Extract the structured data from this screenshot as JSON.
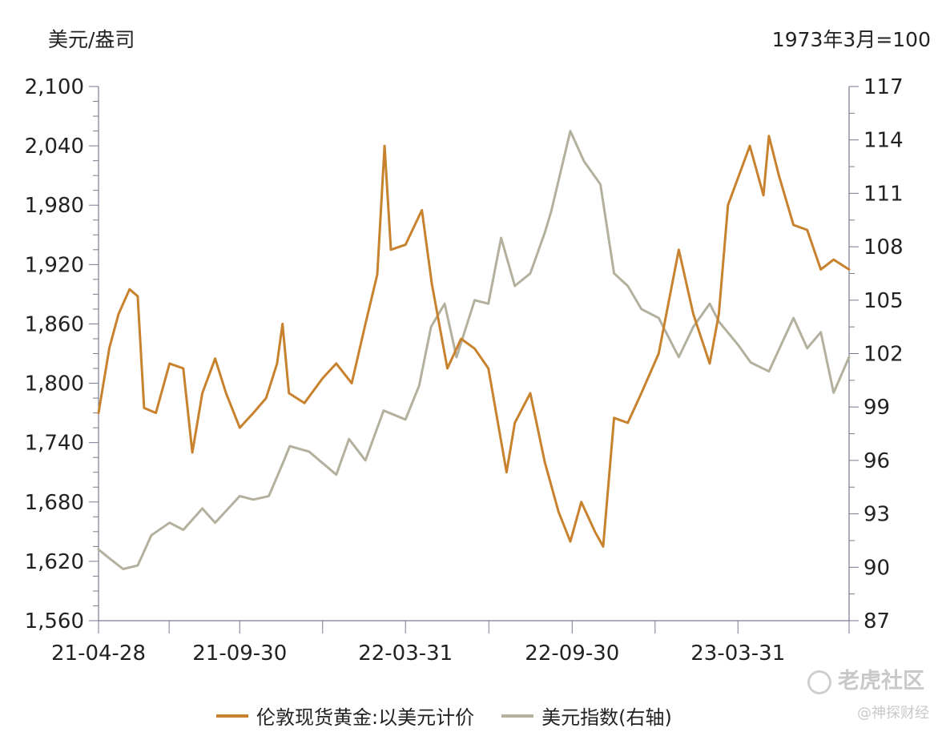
{
  "chart_data": {
    "type": "line",
    "y_left": {
      "label": "美元/盎司",
      "min": 1560,
      "max": 2100,
      "ticks": [
        "2,100",
        "2,040",
        "1,980",
        "1,920",
        "1,860",
        "1,800",
        "1,740",
        "1,680",
        "1,620",
        "1,560"
      ],
      "tick_values": [
        2100,
        2040,
        1980,
        1920,
        1860,
        1800,
        1740,
        1680,
        1620,
        1560
      ]
    },
    "y_right": {
      "label": "1973年3月=100",
      "min": 87,
      "max": 117,
      "ticks": [
        "117",
        "114",
        "111",
        "108",
        "105",
        "102",
        "99",
        "96",
        "93",
        "90",
        "87"
      ],
      "tick_values": [
        117,
        114,
        111,
        108,
        105,
        102,
        99,
        96,
        93,
        90,
        87
      ]
    },
    "x_axis": {
      "start": "2021-04-28",
      "end": "2023-07-31",
      "ticks": [
        "21-04-28",
        "21-09-30",
        "22-03-31",
        "22-09-30",
        "23-03-31"
      ],
      "tick_dates": [
        "2021-04-28",
        "2021-09-30",
        "2022-03-31",
        "2022-09-30",
        "2023-03-31"
      ]
    },
    "series": [
      {
        "name": "伦敦现货黄金:以美元计价",
        "axis": "left",
        "color": "#c8822e",
        "points": [
          [
            "2021-04-28",
            1770
          ],
          [
            "2021-05-10",
            1836
          ],
          [
            "2021-05-20",
            1870
          ],
          [
            "2021-06-01",
            1895
          ],
          [
            "2021-06-10",
            1888
          ],
          [
            "2021-06-17",
            1775
          ],
          [
            "2021-06-30",
            1770
          ],
          [
            "2021-07-15",
            1820
          ],
          [
            "2021-07-30",
            1815
          ],
          [
            "2021-08-09",
            1730
          ],
          [
            "2021-08-20",
            1790
          ],
          [
            "2021-09-03",
            1825
          ],
          [
            "2021-09-15",
            1790
          ],
          [
            "2021-09-30",
            1755
          ],
          [
            "2021-10-15",
            1770
          ],
          [
            "2021-10-29",
            1785
          ],
          [
            "2021-11-10",
            1820
          ],
          [
            "2021-11-16",
            1860
          ],
          [
            "2021-11-23",
            1790
          ],
          [
            "2021-12-10",
            1780
          ],
          [
            "2021-12-30",
            1805
          ],
          [
            "2022-01-14",
            1820
          ],
          [
            "2022-01-31",
            1800
          ],
          [
            "2022-02-15",
            1860
          ],
          [
            "2022-02-28",
            1910
          ],
          [
            "2022-03-08",
            2040
          ],
          [
            "2022-03-15",
            1935
          ],
          [
            "2022-03-31",
            1940
          ],
          [
            "2022-04-18",
            1975
          ],
          [
            "2022-04-29",
            1900
          ],
          [
            "2022-05-16",
            1815
          ],
          [
            "2022-05-31",
            1845
          ],
          [
            "2022-06-15",
            1835
          ],
          [
            "2022-06-30",
            1815
          ],
          [
            "2022-07-20",
            1710
          ],
          [
            "2022-07-29",
            1760
          ],
          [
            "2022-08-15",
            1790
          ],
          [
            "2022-08-31",
            1720
          ],
          [
            "2022-09-15",
            1670
          ],
          [
            "2022-09-28",
            1640
          ],
          [
            "2022-10-10",
            1680
          ],
          [
            "2022-10-25",
            1650
          ],
          [
            "2022-11-03",
            1635
          ],
          [
            "2022-11-15",
            1765
          ],
          [
            "2022-11-30",
            1760
          ],
          [
            "2022-12-15",
            1790
          ],
          [
            "2023-01-03",
            1830
          ],
          [
            "2023-01-25",
            1935
          ],
          [
            "2023-02-10",
            1870
          ],
          [
            "2023-02-28",
            1820
          ],
          [
            "2023-03-10",
            1870
          ],
          [
            "2023-03-20",
            1980
          ],
          [
            "2023-04-13",
            2040
          ],
          [
            "2023-04-28",
            1990
          ],
          [
            "2023-05-04",
            2050
          ],
          [
            "2023-05-15",
            2010
          ],
          [
            "2023-05-31",
            1960
          ],
          [
            "2023-06-15",
            1955
          ],
          [
            "2023-06-30",
            1915
          ],
          [
            "2023-07-14",
            1925
          ],
          [
            "2023-07-31",
            1915
          ]
        ]
      },
      {
        "name": "美元指数(右轴)",
        "axis": "right",
        "color": "#b3b09d",
        "points": [
          [
            "2021-04-28",
            91.0
          ],
          [
            "2021-05-10",
            90.5
          ],
          [
            "2021-05-25",
            89.9
          ],
          [
            "2021-06-10",
            90.1
          ],
          [
            "2021-06-25",
            91.8
          ],
          [
            "2021-07-15",
            92.5
          ],
          [
            "2021-07-30",
            92.1
          ],
          [
            "2021-08-20",
            93.3
          ],
          [
            "2021-09-03",
            92.5
          ],
          [
            "2021-09-30",
            94.0
          ],
          [
            "2021-10-15",
            93.8
          ],
          [
            "2021-11-01",
            94.0
          ],
          [
            "2021-11-16",
            95.8
          ],
          [
            "2021-11-24",
            96.8
          ],
          [
            "2021-12-15",
            96.5
          ],
          [
            "2022-01-14",
            95.2
          ],
          [
            "2022-01-28",
            97.2
          ],
          [
            "2022-02-15",
            96.0
          ],
          [
            "2022-03-07",
            98.8
          ],
          [
            "2022-03-31",
            98.3
          ],
          [
            "2022-04-15",
            100.2
          ],
          [
            "2022-04-28",
            103.5
          ],
          [
            "2022-05-13",
            104.8
          ],
          [
            "2022-05-26",
            101.8
          ],
          [
            "2022-06-15",
            105.0
          ],
          [
            "2022-06-30",
            104.8
          ],
          [
            "2022-07-14",
            108.5
          ],
          [
            "2022-07-29",
            105.8
          ],
          [
            "2022-08-15",
            106.5
          ],
          [
            "2022-08-31",
            108.8
          ],
          [
            "2022-09-07",
            110.0
          ],
          [
            "2022-09-28",
            114.5
          ],
          [
            "2022-10-13",
            112.8
          ],
          [
            "2022-10-31",
            111.5
          ],
          [
            "2022-11-15",
            106.5
          ],
          [
            "2022-11-30",
            105.8
          ],
          [
            "2022-12-15",
            104.5
          ],
          [
            "2023-01-03",
            104.0
          ],
          [
            "2023-01-25",
            101.8
          ],
          [
            "2023-02-10",
            103.5
          ],
          [
            "2023-02-28",
            104.8
          ],
          [
            "2023-03-10",
            103.8
          ],
          [
            "2023-03-31",
            102.5
          ],
          [
            "2023-04-14",
            101.5
          ],
          [
            "2023-05-04",
            101.0
          ],
          [
            "2023-05-31",
            104.0
          ],
          [
            "2023-06-15",
            102.3
          ],
          [
            "2023-06-30",
            103.2
          ],
          [
            "2023-07-14",
            99.8
          ],
          [
            "2023-07-31",
            101.8
          ]
        ]
      }
    ],
    "legend_position": "bottom",
    "grid": false
  },
  "watermark": {
    "brand": "老虎社区",
    "author": "@神探财经"
  }
}
